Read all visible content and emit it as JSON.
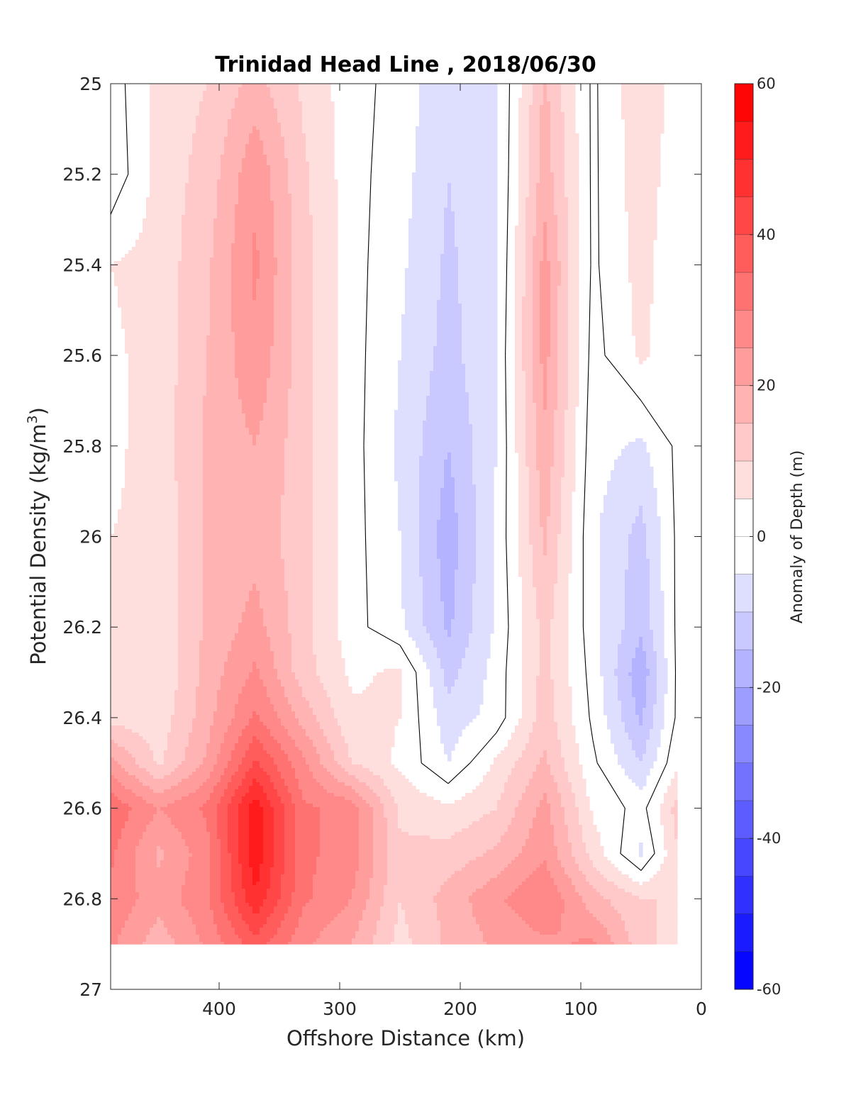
{
  "chart_data": {
    "type": "heatmap",
    "subtype": "filled-contour",
    "title": "Trinidad Head Line , 2018/06/30",
    "xlabel": "Offshore Distance (km)",
    "ylabel": "Potential Density (kg/m",
    "ylabel_sup": "3",
    "ylabel_close": ")",
    "xlim": [
      490,
      0
    ],
    "x_reversed": true,
    "ylim": [
      25,
      27
    ],
    "y_reversed": true,
    "x_ticks": [
      400,
      300,
      200,
      100,
      0
    ],
    "x_tick_labels": [
      "400",
      "300",
      "200",
      "100",
      "0"
    ],
    "y_ticks": [
      25,
      25.2,
      25.4,
      25.6,
      25.8,
      26,
      26.2,
      26.4,
      26.6,
      26.8,
      27
    ],
    "y_tick_labels": [
      "25",
      "25.2",
      "25.4",
      "25.6",
      "25.8",
      "26",
      "26.2",
      "26.4",
      "26.6",
      "26.8",
      "27"
    ],
    "data_bottom_density": 26.9,
    "colorbar": {
      "label": "Anomaly of Depth (m)",
      "range": [
        -60,
        60
      ],
      "step": 5,
      "ticks": [
        60,
        40,
        20,
        0,
        -20,
        -40,
        -60
      ],
      "tick_labels": [
        "60",
        "40",
        "20",
        "0",
        "-20",
        "-40",
        "-60"
      ],
      "high_color": "#ff0000",
      "low_color": "#0000ff",
      "mid_color": "#ffffff"
    },
    "zero_contour": "black line",
    "grid": {
      "x_km": [
        490,
        450,
        410,
        370,
        330,
        290,
        250,
        210,
        170,
        130,
        90,
        50,
        20
      ],
      "density": [
        25.0,
        25.2,
        25.4,
        25.6,
        25.8,
        26.0,
        26.2,
        26.3,
        26.4,
        26.5,
        26.6,
        26.7,
        26.8,
        26.9
      ],
      "values": [
        [
          -3,
          7,
          10,
          17,
          9,
          2,
          -2,
          -9,
          -6,
          16,
          -1,
          9,
          3
        ],
        [
          -4,
          7,
          12,
          24,
          11,
          2,
          -3,
          -10,
          -6,
          18,
          -1,
          8,
          2
        ],
        [
          5,
          7,
          14,
          26,
          12,
          2,
          -4,
          -11,
          -6,
          22,
          -1,
          7,
          1
        ],
        [
          4,
          7,
          15,
          24,
          12,
          2,
          -5,
          -12,
          -5,
          22,
          -2,
          6,
          1
        ],
        [
          4,
          7,
          16,
          20,
          12,
          2,
          -6,
          -15,
          -5,
          19,
          -3,
          -6,
          1
        ],
        [
          5,
          6,
          16,
          18,
          12,
          2,
          -5,
          -18,
          -4,
          16,
          -4,
          -12,
          1
        ],
        [
          5,
          6,
          16,
          22,
          12,
          2,
          -4,
          -16,
          -4,
          12,
          -3,
          -14,
          1
        ],
        [
          6,
          5,
          17,
          26,
          12,
          4,
          6,
          -12,
          -3,
          12,
          -2,
          -19,
          1
        ],
        [
          8,
          7,
          18,
          31,
          18,
          6,
          5,
          -8,
          -3,
          13,
          -1,
          -16,
          1
        ],
        [
          22,
          9,
          21,
          41,
          26,
          10,
          4,
          -5,
          6,
          16,
          1,
          -10,
          4
        ],
        [
          34,
          25,
          31,
          53,
          31,
          28,
          9,
          6,
          10,
          22,
          4,
          -2,
          12
        ],
        [
          31,
          19,
          28,
          54,
          31,
          28,
          11,
          12,
          16,
          24,
          8,
          -6,
          10
        ],
        [
          29,
          22,
          29,
          49,
          31,
          25,
          10,
          17,
          24,
          30,
          17,
          10,
          10
        ],
        [
          26,
          17,
          26,
          38,
          26,
          20,
          8,
          16,
          21,
          24,
          26,
          12,
          7
        ]
      ]
    }
  }
}
